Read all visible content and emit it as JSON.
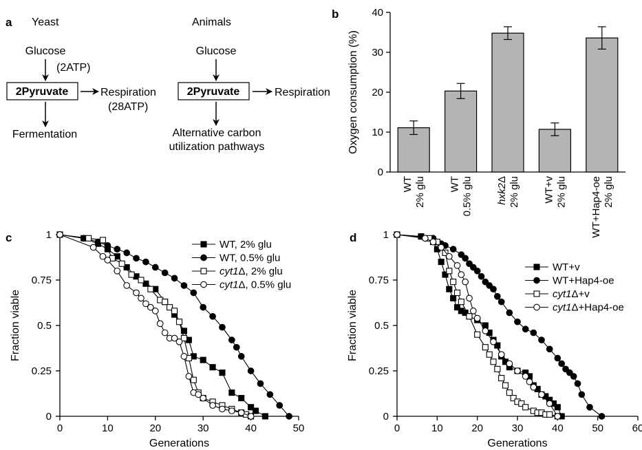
{
  "panels": {
    "a": {
      "letter": "a",
      "yeast": {
        "title": "Yeast",
        "glucose": "Glucose",
        "atp": "(2ATP)",
        "pyruvate": "2Pyruvate",
        "respiration": "Respiration",
        "atp2": "(28ATP)",
        "fermentation": "Fermentation"
      },
      "animals": {
        "title": "Animals",
        "glucose": "Glucose",
        "pyruvate": "2Pyruvate",
        "respiration": "Respiration",
        "alt1": "Alternative carbon",
        "alt2": "utilization pathways"
      }
    },
    "b": {
      "letter": "b"
    },
    "c": {
      "letter": "c"
    },
    "d": {
      "letter": "d"
    }
  },
  "chart_data": [
    {
      "panel": "b",
      "type": "bar",
      "ylabel": "Oxygen consumption (%)",
      "ylim": [
        0,
        40
      ],
      "yticks": [
        0,
        10,
        20,
        30,
        40
      ],
      "categories": [
        {
          "line1": "WT",
          "line2": "2% glu"
        },
        {
          "line1": "WT",
          "line2": "0.5% glu"
        },
        {
          "line1": "hxk2Δ",
          "line2": "2% glu"
        },
        {
          "line1": "WT+v",
          "line2": "2% glu"
        },
        {
          "line1": "WT+Hap4-oe",
          "line2": "2% glu"
        }
      ],
      "values": [
        11.1,
        20.3,
        34.8,
        10.7,
        33.6
      ],
      "errors": [
        1.7,
        1.9,
        1.6,
        1.6,
        2.8
      ],
      "bar_color": "#b4b4b4"
    },
    {
      "panel": "c",
      "type": "line",
      "xlabel": "Generations",
      "ylabel": "Fraction viable",
      "xlim": [
        0,
        50
      ],
      "ylim": [
        0,
        1
      ],
      "xticks": [
        0,
        10,
        20,
        30,
        40,
        50
      ],
      "ytick_labels": [
        "0",
        "0.25",
        "0.5",
        "0.75",
        "1"
      ],
      "series": [
        {
          "name": "WT, 2% glu",
          "marker": "square",
          "filled": true,
          "x": [
            0,
            5,
            8,
            10,
            12,
            14,
            16,
            18,
            20,
            22,
            24,
            26,
            27,
            28,
            30,
            32,
            34,
            36,
            38,
            40,
            41,
            43
          ],
          "y": [
            1,
            0.98,
            0.95,
            0.92,
            0.88,
            0.82,
            0.77,
            0.73,
            0.7,
            0.63,
            0.56,
            0.47,
            0.42,
            0.33,
            0.31,
            0.27,
            0.24,
            0.13,
            0.1,
            0.05,
            0.03,
            0
          ]
        },
        {
          "name": "WT, 0.5% glu",
          "marker": "circle",
          "filled": true,
          "x": [
            0,
            5,
            8,
            10,
            12,
            14,
            16,
            18,
            20,
            22,
            24,
            26,
            28,
            30,
            32,
            34,
            36,
            37,
            38,
            40,
            42,
            44,
            46,
            48
          ],
          "y": [
            1,
            0.98,
            0.96,
            0.94,
            0.92,
            0.9,
            0.87,
            0.85,
            0.82,
            0.79,
            0.76,
            0.72,
            0.68,
            0.6,
            0.55,
            0.49,
            0.42,
            0.38,
            0.33,
            0.25,
            0.18,
            0.12,
            0.06,
            0
          ]
        },
        {
          "name": "cyt1Δ, 2% glu",
          "marker": "square",
          "filled": false,
          "x": [
            0,
            6,
            9,
            11,
            13,
            15,
            17,
            19,
            21,
            22,
            23,
            24,
            25,
            26,
            27,
            28,
            29,
            30,
            32,
            34,
            36,
            38,
            39,
            40
          ],
          "y": [
            1,
            0.98,
            0.97,
            0.87,
            0.84,
            0.78,
            0.75,
            0.7,
            0.64,
            0.63,
            0.6,
            0.58,
            0.52,
            0.43,
            0.32,
            0.2,
            0.13,
            0.1,
            0.08,
            0.06,
            0.04,
            0.02,
            0.01,
            0
          ]
        },
        {
          "name": "cyt1Δ, 0.5% glu",
          "marker": "circle",
          "filled": false,
          "x": [
            0,
            7,
            9,
            10,
            12,
            14,
            16,
            17,
            18,
            19,
            20,
            21,
            22,
            23,
            24,
            25,
            26,
            27,
            28,
            29,
            30,
            32,
            34,
            36,
            38,
            40
          ],
          "y": [
            1,
            0.93,
            0.88,
            0.86,
            0.8,
            0.72,
            0.68,
            0.65,
            0.62,
            0.6,
            0.58,
            0.51,
            0.46,
            0.43,
            0.43,
            0.41,
            0.33,
            0.22,
            0.13,
            0.12,
            0.1,
            0.06,
            0.04,
            0.03,
            0.02,
            0
          ]
        }
      ]
    },
    {
      "panel": "d",
      "type": "line",
      "xlabel": "Generations",
      "ylabel": "Fraction viable",
      "xlim": [
        0,
        60
      ],
      "ylim": [
        0,
        1
      ],
      "xticks": [
        0,
        10,
        20,
        30,
        40,
        50,
        60
      ],
      "ytick_labels": [
        "0",
        "0.25",
        "0.5",
        "0.75",
        "1"
      ],
      "series": [
        {
          "name": "WT+v",
          "marker": "square",
          "filled": true,
          "x": [
            0,
            6,
            9,
            10,
            11,
            12,
            13,
            14,
            15,
            16,
            17,
            18,
            20,
            22,
            23,
            24,
            25,
            26,
            27,
            28,
            30,
            32,
            33,
            34,
            35,
            36,
            37,
            38,
            39,
            40,
            41
          ],
          "y": [
            1,
            0.99,
            0.96,
            0.92,
            0.85,
            0.78,
            0.7,
            0.65,
            0.6,
            0.58,
            0.57,
            0.55,
            0.53,
            0.5,
            0.46,
            0.42,
            0.39,
            0.33,
            0.3,
            0.27,
            0.25,
            0.24,
            0.22,
            0.17,
            0.15,
            0.12,
            0.11,
            0.09,
            0.07,
            0.05,
            0
          ]
        },
        {
          "name": "WT+Hap4-oe",
          "marker": "circle",
          "filled": true,
          "x": [
            0,
            6,
            9,
            10,
            11,
            12,
            14,
            16,
            17,
            18,
            19,
            20,
            21,
            22,
            23,
            24,
            25,
            26,
            28,
            30,
            32,
            34,
            36,
            38,
            40,
            41,
            42,
            43,
            44,
            45,
            46,
            48,
            51
          ],
          "y": [
            1,
            0.99,
            0.98,
            0.96,
            0.95,
            0.94,
            0.92,
            0.89,
            0.87,
            0.84,
            0.82,
            0.8,
            0.77,
            0.74,
            0.72,
            0.7,
            0.66,
            0.63,
            0.57,
            0.52,
            0.48,
            0.46,
            0.42,
            0.37,
            0.32,
            0.29,
            0.26,
            0.24,
            0.22,
            0.18,
            0.12,
            0.05,
            0
          ]
        },
        {
          "name": "cyt1Δ+v",
          "marker": "square",
          "filled": false,
          "x": [
            0,
            8,
            10,
            12,
            13,
            14,
            15,
            16,
            18,
            20,
            22,
            23,
            24,
            25,
            26,
            27,
            28,
            29,
            30,
            31,
            32,
            34,
            35,
            36,
            37,
            38,
            40
          ],
          "y": [
            1,
            0.98,
            0.96,
            0.9,
            0.8,
            0.74,
            0.68,
            0.63,
            0.55,
            0.45,
            0.38,
            0.34,
            0.3,
            0.26,
            0.21,
            0.17,
            0.13,
            0.1,
            0.08,
            0.07,
            0.05,
            0.03,
            0.02,
            0.02,
            0.01,
            0.01,
            0
          ]
        },
        {
          "name": "cyt1Δ+Hap4-oe",
          "marker": "circle",
          "filled": false,
          "x": [
            0,
            7,
            9,
            11,
            13,
            15,
            16,
            17,
            18,
            19,
            20,
            22,
            24,
            26,
            28,
            30,
            32,
            33,
            34,
            36,
            38,
            40
          ],
          "y": [
            1,
            0.98,
            0.96,
            0.93,
            0.88,
            0.83,
            0.78,
            0.74,
            0.65,
            0.58,
            0.54,
            0.47,
            0.41,
            0.34,
            0.29,
            0.25,
            0.22,
            0.19,
            0.16,
            0.12,
            0.07,
            0
          ]
        }
      ]
    }
  ]
}
